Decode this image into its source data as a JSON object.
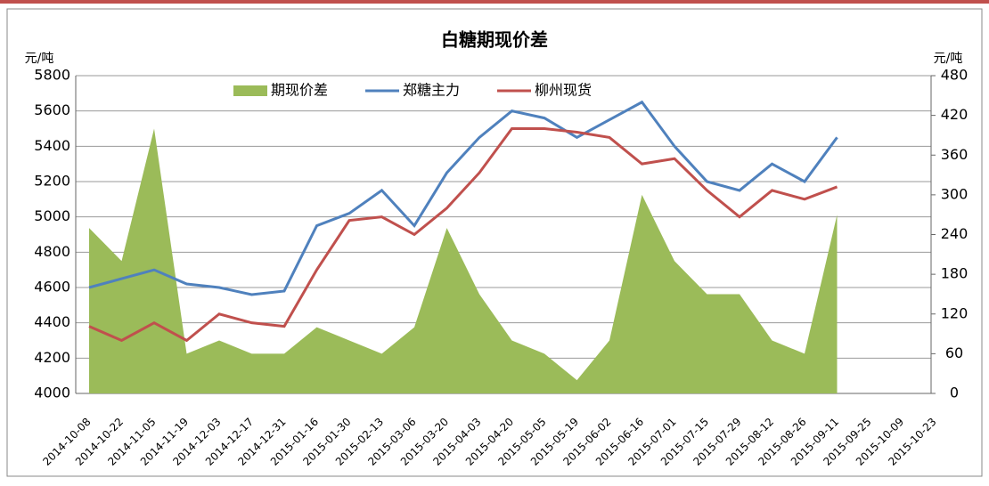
{
  "chart_data": {
    "type": "combo",
    "title": "白糖期现价差",
    "y_label": "元/吨",
    "y2_label": "元/吨",
    "categories": [
      "2014-10-08",
      "2014-10-22",
      "2014-11-05",
      "2014-11-19",
      "2014-12-03",
      "2014-12-17",
      "2014-12-31",
      "2015-01-16",
      "2015-01-30",
      "2015-02-13",
      "2015-03-06",
      "2015-03-20",
      "2015-04-03",
      "2015-04-20",
      "2015-05-05",
      "2015-05-19",
      "2015-06-02",
      "2015-06-16",
      "2015-07-01",
      "2015-07-15",
      "2015-07-29",
      "2015-08-12",
      "2015-08-26",
      "2015-09-11",
      "2015-09-25",
      "2015-10-09",
      "2015-10-23"
    ],
    "series": [
      {
        "name": "期现价差",
        "type": "area",
        "axis": "y2",
        "color": "#9bbb59",
        "values": [
          250,
          200,
          400,
          60,
          80,
          60,
          60,
          100,
          80,
          60,
          100,
          250,
          150,
          80,
          60,
          20,
          80,
          300,
          200,
          150,
          150,
          80,
          60,
          270,
          null,
          null,
          null
        ]
      },
      {
        "name": "郑糖主力",
        "type": "line",
        "color": "#4f81bd",
        "values": [
          4600,
          4650,
          4700,
          4620,
          4600,
          4560,
          4580,
          4950,
          5020,
          5150,
          4950,
          5250,
          5450,
          5600,
          5560,
          5450,
          5550,
          5650,
          5400,
          5200,
          5150,
          5300,
          5200,
          5450,
          null,
          null,
          null
        ]
      },
      {
        "name": "柳州现货",
        "type": "line",
        "color": "#c0504d",
        "values": [
          4380,
          4300,
          4400,
          4300,
          4450,
          4400,
          4380,
          4700,
          4980,
          5000,
          4900,
          5050,
          5250,
          5500,
          5500,
          5480,
          5450,
          5300,
          5330,
          5150,
          5000,
          5150,
          5100,
          5170,
          null,
          null,
          null
        ]
      }
    ],
    "ylim": [
      4000,
      5800
    ],
    "yticks": [
      4000,
      4200,
      4400,
      4600,
      4800,
      5000,
      5200,
      5400,
      5600,
      5800
    ],
    "y2lim": [
      0,
      480
    ],
    "y2ticks": [
      0,
      60,
      120,
      180,
      240,
      300,
      360,
      420,
      480
    ],
    "grid": true,
    "legend": "top"
  }
}
